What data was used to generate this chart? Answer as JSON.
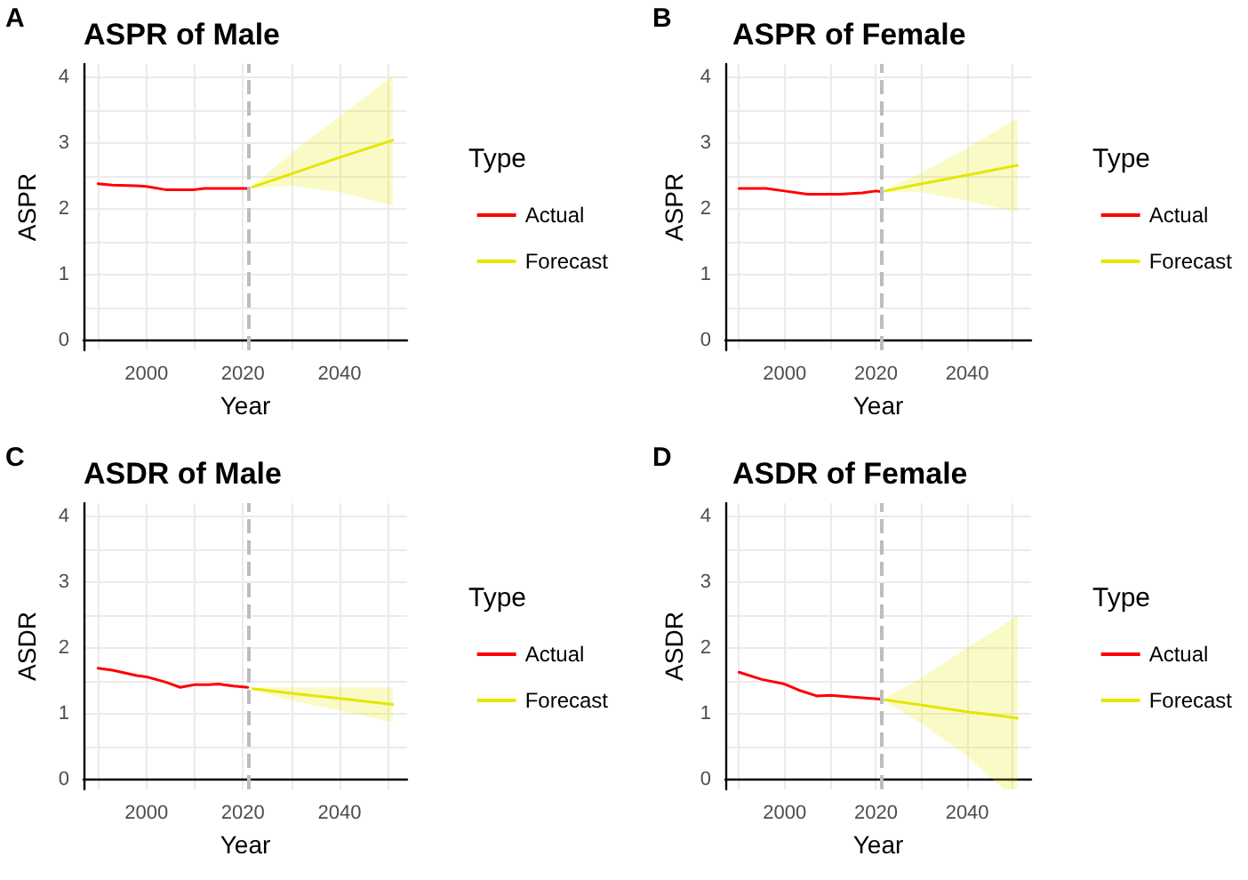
{
  "chart_data": [
    {
      "type": "line",
      "title": "ASPR of Male",
      "annotations": [
        "A"
      ],
      "xlabel": "Year",
      "ylabel": "ASPR",
      "legend_title": "Type",
      "legend": "right",
      "grid": true,
      "xlim": [
        1987,
        2054
      ],
      "ylim": [
        -0.15,
        4.2
      ],
      "xticks": [
        {
          "value": 1990,
          "label": null
        },
        2000,
        {
          "value": 2010,
          "label": null
        },
        2020,
        {
          "value": 2030,
          "label": null
        },
        2040,
        {
          "value": 2050,
          "label": null
        }
      ],
      "yticks": [
        0,
        {
          "value": 0.5,
          "label": null
        },
        1,
        {
          "value": 1.5,
          "label": null
        },
        2,
        {
          "value": 2.5,
          "label": null
        },
        3,
        {
          "value": 3.5,
          "label": null
        },
        4
      ],
      "ref_lines": [
        {
          "axis": "x",
          "value": 2021,
          "color": "#bdbdbd",
          "line_style": "dashed"
        }
      ],
      "series": [
        {
          "name": "Actual",
          "color": "#ff0000",
          "x": [
            1990,
            1993,
            1998,
            2000,
            2004,
            2010,
            2012,
            2021
          ],
          "values": [
            2.38,
            2.36,
            2.35,
            2.34,
            2.29,
            2.29,
            2.31,
            2.31
          ]
        },
        {
          "name": "Forecast",
          "color": "#e6e600",
          "x": [
            2022,
            2030,
            2040,
            2051
          ],
          "values": [
            2.33,
            2.53,
            2.78,
            3.04
          ],
          "lower": [
            2.31,
            2.35,
            2.25,
            2.05
          ],
          "upper": [
            2.35,
            2.85,
            3.4,
            4.02
          ]
        }
      ]
    },
    {
      "type": "line",
      "title": "ASPR of Female",
      "annotations": [
        "B"
      ],
      "xlabel": "Year",
      "ylabel": "ASPR",
      "legend_title": "Type",
      "legend": "right",
      "grid": true,
      "xlim": [
        1987,
        2054
      ],
      "ylim": [
        -0.15,
        4.2
      ],
      "xticks": [
        {
          "value": 1990,
          "label": null
        },
        2000,
        {
          "value": 2010,
          "label": null
        },
        2020,
        {
          "value": 2030,
          "label": null
        },
        2040,
        {
          "value": 2050,
          "label": null
        }
      ],
      "yticks": [
        0,
        {
          "value": 0.5,
          "label": null
        },
        1,
        {
          "value": 1.5,
          "label": null
        },
        2,
        {
          "value": 2.5,
          "label": null
        },
        3,
        {
          "value": 3.5,
          "label": null
        },
        4
      ],
      "ref_lines": [
        {
          "axis": "x",
          "value": 2021,
          "color": "#bdbdbd",
          "line_style": "dashed"
        }
      ],
      "series": [
        {
          "name": "Actual",
          "color": "#ff0000",
          "x": [
            1990,
            1996,
            2000,
            2005,
            2012,
            2017,
            2020,
            2021
          ],
          "values": [
            2.31,
            2.31,
            2.27,
            2.22,
            2.22,
            2.24,
            2.27,
            2.26
          ]
        },
        {
          "name": "Forecast",
          "color": "#e6e600",
          "x": [
            2022,
            2030,
            2040,
            2051
          ],
          "values": [
            2.27,
            2.38,
            2.51,
            2.66
          ],
          "lower": [
            2.25,
            2.25,
            2.12,
            1.95
          ],
          "upper": [
            2.29,
            2.55,
            2.92,
            3.38
          ]
        }
      ]
    },
    {
      "type": "line",
      "title": "ASDR of Male",
      "annotations": [
        "C"
      ],
      "xlabel": "Year",
      "ylabel": "ASDR",
      "legend_title": "Type",
      "legend": "right",
      "grid": true,
      "xlim": [
        1987,
        2054
      ],
      "ylim": [
        -0.15,
        4.2
      ],
      "xticks": [
        {
          "value": 1990,
          "label": null
        },
        2000,
        {
          "value": 2010,
          "label": null
        },
        2020,
        {
          "value": 2030,
          "label": null
        },
        2040,
        {
          "value": 2050,
          "label": null
        }
      ],
      "yticks": [
        0,
        {
          "value": 0.5,
          "label": null
        },
        1,
        {
          "value": 1.5,
          "label": null
        },
        2,
        {
          "value": 2.5,
          "label": null
        },
        3,
        {
          "value": 3.5,
          "label": null
        },
        4
      ],
      "ref_lines": [
        {
          "axis": "x",
          "value": 2021,
          "color": "#bdbdbd",
          "line_style": "dashed"
        }
      ],
      "series": [
        {
          "name": "Actual",
          "color": "#ff0000",
          "x": [
            1990,
            1993,
            1998,
            2000,
            2004,
            2007,
            2010,
            2013,
            2015,
            2018,
            2021
          ],
          "values": [
            1.69,
            1.66,
            1.58,
            1.56,
            1.48,
            1.4,
            1.44,
            1.44,
            1.45,
            1.42,
            1.4
          ]
        },
        {
          "name": "Forecast",
          "color": "#e6e600",
          "x": [
            2022,
            2030,
            2040,
            2051
          ],
          "values": [
            1.38,
            1.31,
            1.23,
            1.14
          ],
          "lower": [
            1.36,
            1.2,
            1.05,
            0.87
          ],
          "upper": [
            1.4,
            1.4,
            1.4,
            1.4
          ]
        }
      ]
    },
    {
      "type": "line",
      "title": "ASDR of Female",
      "annotations": [
        "D"
      ],
      "xlabel": "Year",
      "ylabel": "ASDR",
      "legend_title": "Type",
      "legend": "right",
      "grid": true,
      "xlim": [
        1987,
        2054
      ],
      "ylim": [
        -0.15,
        4.2
      ],
      "xticks": [
        {
          "value": 1990,
          "label": null
        },
        2000,
        {
          "value": 2010,
          "label": null
        },
        2020,
        {
          "value": 2030,
          "label": null
        },
        2040,
        {
          "value": 2050,
          "label": null
        }
      ],
      "yticks": [
        0,
        {
          "value": 0.5,
          "label": null
        },
        1,
        {
          "value": 1.5,
          "label": null
        },
        2,
        {
          "value": 2.5,
          "label": null
        },
        3,
        {
          "value": 3.5,
          "label": null
        },
        4
      ],
      "ref_lines": [
        {
          "axis": "x",
          "value": 2021,
          "color": "#bdbdbd",
          "line_style": "dashed"
        }
      ],
      "series": [
        {
          "name": "Actual",
          "color": "#ff0000",
          "x": [
            1990,
            1995,
            2000,
            2003,
            2007,
            2010,
            2015,
            2021
          ],
          "values": [
            1.63,
            1.52,
            1.45,
            1.36,
            1.27,
            1.28,
            1.25,
            1.22
          ]
        },
        {
          "name": "Forecast",
          "color": "#e6e600",
          "x": [
            2022,
            2030,
            2040,
            2048,
            2051
          ],
          "values": [
            1.21,
            1.13,
            1.03,
            0.96,
            0.93
          ],
          "lower": [
            1.19,
            0.85,
            0.35,
            -0.15,
            -0.15
          ],
          "upper": [
            1.23,
            1.55,
            2.0,
            2.35,
            2.51
          ]
        }
      ]
    }
  ]
}
